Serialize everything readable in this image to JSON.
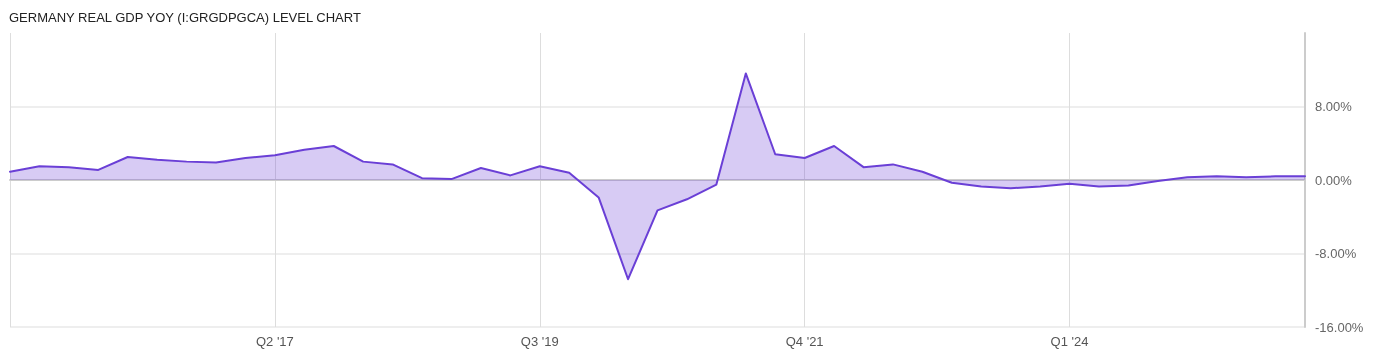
{
  "chart_data": {
    "type": "area",
    "title": "GERMANY REAL GDP YOY (I:GRGDPGCA) LEVEL CHART",
    "categories": [
      null,
      null,
      null,
      null,
      null,
      null,
      null,
      null,
      null,
      "Q2 '17",
      null,
      null,
      null,
      null,
      null,
      null,
      null,
      null,
      "Q3 '19",
      null,
      null,
      null,
      null,
      null,
      null,
      null,
      null,
      "Q4 '21",
      null,
      null,
      null,
      null,
      null,
      null,
      null,
      null,
      "Q1 '24",
      null,
      null,
      null,
      null,
      null,
      null,
      null,
      null
    ],
    "series": [
      {
        "color": "#6a3fd6",
        "values": [
          0.9,
          1.5,
          1.4,
          1.1,
          2.5,
          2.2,
          2.0,
          1.9,
          2.4,
          2.7,
          3.3,
          3.7,
          2.0,
          1.7,
          0.2,
          0.1,
          1.3,
          0.5,
          1.5,
          0.8,
          -1.9,
          -10.8,
          -3.3,
          -2.1,
          -0.5,
          11.6,
          2.8,
          2.4,
          3.7,
          1.4,
          1.7,
          0.9,
          -0.3,
          -0.7,
          -0.9,
          -0.7,
          -0.4,
          -0.7,
          -0.6,
          -0.1,
          0.3,
          0.4,
          0.3,
          0.4,
          0.4
        ]
      }
    ],
    "ylim": [
      -16,
      16
    ],
    "yticks": [
      {
        "value": -16,
        "label": "-16.00%"
      },
      {
        "value": -8,
        "label": "-8.00%"
      },
      {
        "value": 0,
        "label": "0.00%"
      },
      {
        "value": 8,
        "label": "8.00%"
      }
    ],
    "grid": true,
    "marker": "none",
    "line_style": "solid"
  }
}
